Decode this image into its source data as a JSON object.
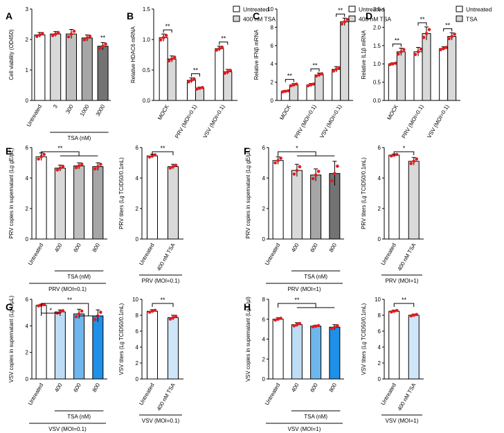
{
  "chart_data": [
    {
      "panel": "A",
      "type": "bar",
      "ylabel": "Cell viability (OD450)",
      "ylim": [
        0,
        3
      ],
      "yticks": [
        0,
        1,
        2,
        3
      ],
      "categories": [
        "Untreated",
        "3",
        "300",
        "1000",
        "3000"
      ],
      "values": [
        2.15,
        2.18,
        2.18,
        2.05,
        1.78
      ],
      "errors": [
        0.08,
        0.08,
        0.15,
        0.1,
        0.12
      ],
      "colors": [
        "#ffffff",
        "#d9d9d9",
        "#bfbfbf",
        "#a6a6a6",
        "#737373"
      ],
      "sig": [
        {
          "bar": 4,
          "label": "**"
        }
      ],
      "group_label": "TSA (nM)"
    },
    {
      "panel": "B",
      "type": "grouped-bar",
      "ylabel": "Relative HDAC6 mRNA",
      "ylim": [
        0,
        1.5
      ],
      "yticks": [
        0.0,
        0.5,
        1.0,
        1.5
      ],
      "categories": [
        "MOCK",
        "PRV (MOI=0.1)",
        "VSV (MOI=0.1)"
      ],
      "series": [
        {
          "name": "Untreated",
          "color": "#ffffff",
          "values": [
            1.03,
            0.33,
            0.85
          ],
          "errors": [
            0.06,
            0.04,
            0.04
          ]
        },
        {
          "name": "400 nM TSA",
          "color": "#d9d9d9",
          "values": [
            0.68,
            0.2,
            0.47
          ],
          "errors": [
            0.05,
            0.02,
            0.04
          ]
        }
      ],
      "sig": [
        "**",
        "**",
        "**"
      ],
      "legend": [
        "Untreated",
        "400 nM TSA"
      ]
    },
    {
      "panel": "C",
      "type": "grouped-bar",
      "ylabel": "Relative IFNβ mRNA",
      "ylim": [
        0,
        10
      ],
      "yticks": [
        0,
        2,
        4,
        6,
        8,
        10
      ],
      "categories": [
        "MOCK",
        "PRV (MOI=0.1)",
        "VSV (MOI=0.1)"
      ],
      "series": [
        {
          "name": "Untreated",
          "color": "#ffffff",
          "values": [
            1.0,
            1.7,
            3.4
          ],
          "errors": [
            0.1,
            0.15,
            0.3
          ]
        },
        {
          "name": "400 nM TSA",
          "color": "#d9d9d9",
          "values": [
            1.7,
            2.8,
            8.6
          ],
          "errors": [
            0.15,
            0.2,
            0.4
          ]
        }
      ],
      "sig": [
        "**",
        "**",
        "**"
      ],
      "legend": [
        "Untreated",
        "400 nM TSA"
      ]
    },
    {
      "panel": "D",
      "type": "grouped-bar",
      "ylabel": "Relative IL1β mRNA",
      "ylim": [
        0,
        2.5
      ],
      "yticks": [
        0.0,
        0.5,
        1.0,
        1.5,
        2.0,
        2.5
      ],
      "categories": [
        "MOCK",
        "PRV (MOI=0.1)",
        "VSV (MOI=0.1)"
      ],
      "series": [
        {
          "name": "Untreated",
          "color": "#ffffff",
          "values": [
            1.0,
            1.33,
            1.42
          ],
          "errors": [
            0.03,
            0.12,
            0.05
          ]
        },
        {
          "name": "TSA",
          "color": "#d9d9d9",
          "values": [
            1.33,
            1.83,
            1.75
          ],
          "errors": [
            0.1,
            0.18,
            0.1
          ]
        }
      ],
      "sig": [
        "**",
        "**",
        "**"
      ],
      "legend": [
        "Untreated",
        "TSA"
      ]
    },
    {
      "panel": "E",
      "type": "bar",
      "ylabel": "PRV copies in supernatant (Lg gE/μL)",
      "ylim": [
        0,
        6
      ],
      "yticks": [
        0,
        2,
        4,
        6
      ],
      "categories": [
        "Untreated",
        "400",
        "600",
        "800"
      ],
      "values": [
        5.4,
        4.65,
        4.8,
        4.75
      ],
      "errors": [
        0.25,
        0.2,
        0.2,
        0.25
      ],
      "colors": [
        "#ffffff",
        "#d9d9d9",
        "#bfbfbf",
        "#a6a6a6"
      ],
      "sig_bracket": "**",
      "group_label": "TSA (nM)",
      "bottom_label": "PRV (MOI=0.1)"
    },
    {
      "panel": "E2",
      "type": "bar",
      "ylabel": "PRV titers (Lg TCID50/0.1mL)",
      "ylim": [
        0,
        6
      ],
      "yticks": [
        0,
        2,
        4,
        6
      ],
      "categories": [
        "Untreated",
        "400 nM TSA"
      ],
      "values": [
        5.45,
        4.75
      ],
      "errors": [
        0.12,
        0.15
      ],
      "colors": [
        "#ffffff",
        "#d9d9d9"
      ],
      "sig_bracket": "**",
      "bottom_label": "PRV (MOI=0.1)"
    },
    {
      "panel": "F",
      "type": "bar",
      "ylabel": "PRV copies in supernatant (Lg gE/μL)",
      "ylim": [
        0,
        6
      ],
      "yticks": [
        0,
        2,
        4,
        6
      ],
      "categories": [
        "Untreated",
        "400",
        "600",
        "800"
      ],
      "values": [
        5.15,
        4.5,
        4.2,
        4.3
      ],
      "errors": [
        0.25,
        0.4,
        0.4,
        0.8
      ],
      "colors": [
        "#ffffff",
        "#d9d9d9",
        "#a6a6a6",
        "#737373"
      ],
      "sig_bracket": "*",
      "group_label": "TSA (nM)",
      "bottom_label": "PRV (MOI=1)"
    },
    {
      "panel": "F2",
      "type": "bar",
      "ylabel": "PRV titers (Lg TCID50/0.1mL)",
      "ylim": [
        0,
        6
      ],
      "yticks": [
        0,
        2,
        4,
        6
      ],
      "categories": [
        "Untreated",
        "400 nM TSA"
      ],
      "values": [
        5.5,
        5.1
      ],
      "errors": [
        0.08,
        0.25
      ],
      "colors": [
        "#ffffff",
        "#d9d9d9"
      ],
      "sig_bracket": "*",
      "bottom_label": "PRV (MOI=1)"
    },
    {
      "panel": "G",
      "type": "bar",
      "ylabel": "VSV copies in supernatant (Lg L/μL)",
      "ylim": [
        0,
        6
      ],
      "yticks": [
        0,
        2,
        4,
        6
      ],
      "categories": [
        "Untreated",
        "400",
        "600",
        "800"
      ],
      "values": [
        5.55,
        5.05,
        4.9,
        4.75
      ],
      "errors": [
        0.08,
        0.15,
        0.35,
        0.45
      ],
      "colors": [
        "#ffffff",
        "#bfdcf5",
        "#6fb6ec",
        "#1e90e8"
      ],
      "sig_bracket": "*",
      "sig_bracket2": "**",
      "group_label": "TSA (nM)",
      "bottom_label": "VSV (MOI=0.1)"
    },
    {
      "panel": "G2",
      "type": "bar",
      "ylabel": "VSV titers (Lg TCID50/0.1mL)",
      "ylim": [
        0,
        10
      ],
      "yticks": [
        0,
        2,
        4,
        6,
        8,
        10
      ],
      "categories": [
        "Untreated",
        "400 nM TSA"
      ],
      "values": [
        8.5,
        7.7
      ],
      "errors": [
        0.2,
        0.3
      ],
      "colors": [
        "#ffffff",
        "#cfe6f8"
      ],
      "sig_bracket": "**",
      "bottom_label": "VSV (MOI=0.1)"
    },
    {
      "panel": "H",
      "type": "bar",
      "ylabel": "VSV copies in supernatant (Lg L/μl)",
      "ylim": [
        0,
        8
      ],
      "yticks": [
        0,
        2,
        4,
        6,
        8
      ],
      "categories": [
        "Untreated",
        "400",
        "600",
        "800"
      ],
      "values": [
        6.0,
        5.45,
        5.3,
        5.2
      ],
      "errors": [
        0.15,
        0.2,
        0.1,
        0.25
      ],
      "colors": [
        "#ffffff",
        "#bfdcf5",
        "#6fb6ec",
        "#1e90e8"
      ],
      "sig_bracket": "**",
      "group_label": "TSA (nM)",
      "bottom_label": "VSV (MOI=1)"
    },
    {
      "panel": "H2",
      "type": "bar",
      "ylabel": "VSV titers (Lg TCID50/0.1mL)",
      "ylim": [
        0,
        10
      ],
      "yticks": [
        0,
        2,
        4,
        6,
        8,
        10
      ],
      "categories": [
        "Untreated",
        "400 nM TSA"
      ],
      "values": [
        8.5,
        8.0
      ],
      "errors": [
        0.15,
        0.15
      ],
      "colors": [
        "#ffffff",
        "#cfe6f8"
      ],
      "sig_bracket": "**",
      "bottom_label": "VSV (MOI=1)"
    }
  ]
}
